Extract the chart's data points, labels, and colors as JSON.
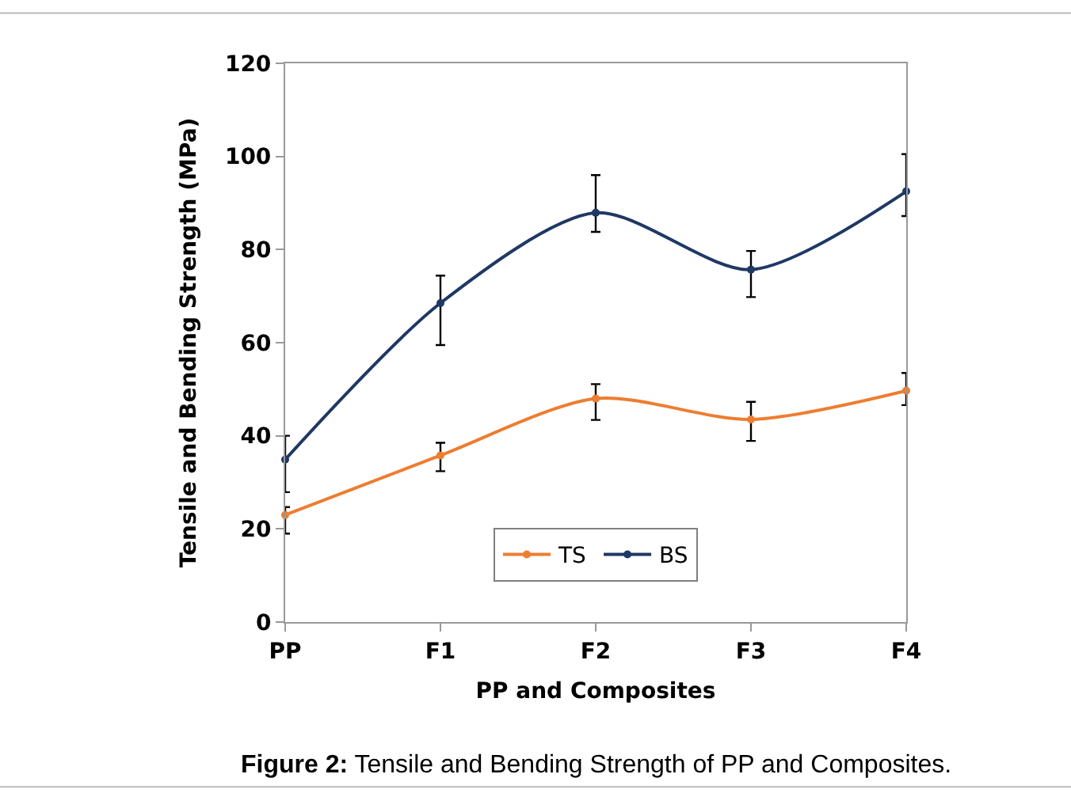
{
  "chart_data": {
    "type": "line",
    "xlabel": "PP and Composites",
    "ylabel": "Tensile and Bending Strength (MPa)",
    "categories": [
      "PP",
      "F1",
      "F2",
      "F3",
      "F4"
    ],
    "series": [
      {
        "name": "TS",
        "color": "#ed7d31",
        "values": [
          23,
          35.8,
          48,
          43.5,
          49.7
        ],
        "errors": [
          [
            19,
            24.7
          ],
          [
            32.4,
            38.5
          ],
          [
            43.4,
            51.1
          ],
          [
            38.9,
            47.3
          ],
          [
            46.6,
            53.5
          ]
        ]
      },
      {
        "name": "BS",
        "color": "#1f3864",
        "values": [
          34.9,
          68.5,
          87.9,
          75.7,
          92.5
        ],
        "errors": [
          [
            27.9,
            40
          ],
          [
            59.5,
            74.4
          ],
          [
            83.8,
            96
          ],
          [
            69.8,
            79.7
          ],
          [
            87.2,
            100.5
          ]
        ]
      }
    ],
    "ylim": [
      0,
      120
    ],
    "yticks": [
      0,
      20,
      40,
      60,
      80,
      100,
      120
    ],
    "grid": false,
    "legend": "bottom",
    "marker": "circle",
    "line_style": "solid",
    "annotations": [
      "Figure 2: Tensile and Bending Strength of PP and Composites."
    ]
  }
}
